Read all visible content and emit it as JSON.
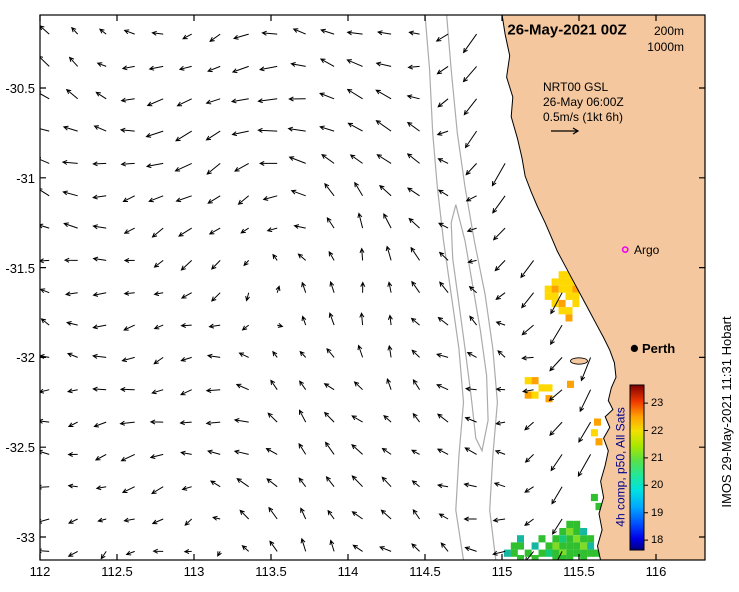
{
  "title": "26-May-2021 00Z",
  "depth_legend": {
    "labels": [
      "200m",
      "1000m"
    ]
  },
  "annotation": {
    "lines": [
      "NRT00 GSL",
      "26-May 06:00Z",
      "0.5m/s (1kt 6h)"
    ]
  },
  "markers": {
    "argo": {
      "label": "Argo",
      "lon": 115.8,
      "lat": -31.4,
      "color": "#f000f0"
    },
    "perth": {
      "label": "Perth",
      "lon": 115.86,
      "lat": -31.95,
      "color": "#000000"
    }
  },
  "axes": {
    "x_tick_labels": [
      "112",
      "112.5",
      "113",
      "113.5",
      "114",
      "114.5",
      "115",
      "115.5",
      "116"
    ],
    "x_tick_values": [
      112,
      112.5,
      113,
      113.5,
      114,
      114.5,
      115,
      115.5,
      116
    ],
    "y_tick_labels": [
      "-30.5",
      "-31",
      "-31.5",
      "-32",
      "-32.5",
      "-33"
    ],
    "y_tick_values": [
      -30.5,
      -31,
      -31.5,
      -32,
      -32.5,
      -33
    ]
  },
  "colorbar": {
    "label": "4h comp, p50, All Sats",
    "label_color": "#00008b",
    "tick_labels": [
      "18",
      "19",
      "20",
      "21",
      "22",
      "23"
    ],
    "tick_values": [
      18,
      19,
      20,
      21,
      22,
      23
    ],
    "value_min": 17.64,
    "value_max": 23.66,
    "stops": [
      [
        0,
        "#00007f"
      ],
      [
        0.07,
        "#0000e8"
      ],
      [
        0.16,
        "#0050ff"
      ],
      [
        0.26,
        "#00a8ff"
      ],
      [
        0.36,
        "#00e0e0"
      ],
      [
        0.45,
        "#20e89a"
      ],
      [
        0.54,
        "#58e04a"
      ],
      [
        0.63,
        "#a8e800"
      ],
      [
        0.72,
        "#f0e000"
      ],
      [
        0.81,
        "#ffa000"
      ],
      [
        0.9,
        "#f03800"
      ],
      [
        1,
        "#7f0000"
      ]
    ]
  },
  "credit": "IMOS 29-May-2021 11:31 Hobart",
  "chart_data": {
    "type": "map",
    "projection": {
      "lon_min": 112,
      "lon_max": 116.32,
      "lat_min": -33.13,
      "lat_max": -30.09
    },
    "colors": {
      "land": "#F5C79E",
      "coastline": "#000000",
      "contour": "#ababab",
      "arrow": "#000000",
      "background": "#ffffff"
    },
    "coastline": [
      [
        115.0,
        -30.09
      ],
      [
        115.02,
        -30.2
      ],
      [
        115.05,
        -30.32
      ],
      [
        115.03,
        -30.44
      ],
      [
        115.07,
        -30.55
      ],
      [
        115.06,
        -30.66
      ],
      [
        115.1,
        -30.78
      ],
      [
        115.13,
        -30.89
      ],
      [
        115.15,
        -30.99
      ],
      [
        115.19,
        -31.08
      ],
      [
        115.23,
        -31.16
      ],
      [
        115.28,
        -31.25
      ],
      [
        115.32,
        -31.33
      ],
      [
        115.36,
        -31.41
      ],
      [
        115.41,
        -31.49
      ],
      [
        115.46,
        -31.57
      ],
      [
        115.51,
        -31.65
      ],
      [
        115.56,
        -31.73
      ],
      [
        115.61,
        -31.81
      ],
      [
        115.66,
        -31.89
      ],
      [
        115.7,
        -31.96
      ],
      [
        115.73,
        -32.03
      ],
      [
        115.74,
        -32.11
      ],
      [
        115.71,
        -32.17
      ],
      [
        115.69,
        -32.24
      ],
      [
        115.72,
        -32.29
      ],
      [
        115.67,
        -32.33
      ],
      [
        115.7,
        -32.39
      ],
      [
        115.66,
        -32.45
      ],
      [
        115.69,
        -32.52
      ],
      [
        115.67,
        -32.6
      ],
      [
        115.64,
        -32.69
      ],
      [
        115.66,
        -32.78
      ],
      [
        115.63,
        -32.87
      ],
      [
        115.65,
        -32.96
      ],
      [
        115.62,
        -33.05
      ],
      [
        115.64,
        -33.13
      ]
    ],
    "island": {
      "lon": 115.5,
      "lat": -32.02,
      "rx": 0.055,
      "ry": 0.018
    },
    "contours": [
      {
        "name": "1000m",
        "closed": false,
        "points": [
          [
            114.5,
            -30.09
          ],
          [
            114.53,
            -30.4
          ],
          [
            114.55,
            -30.75
          ],
          [
            114.58,
            -31.05
          ],
          [
            114.62,
            -31.35
          ],
          [
            114.67,
            -31.65
          ],
          [
            114.72,
            -31.95
          ],
          [
            114.75,
            -32.25
          ],
          [
            114.72,
            -32.55
          ],
          [
            114.7,
            -32.85
          ],
          [
            114.75,
            -33.13
          ]
        ]
      },
      {
        "name": "200m",
        "closed": false,
        "points": [
          [
            114.64,
            -30.09
          ],
          [
            114.67,
            -30.4
          ],
          [
            114.71,
            -30.75
          ],
          [
            114.76,
            -31.05
          ],
          [
            114.82,
            -31.35
          ],
          [
            114.89,
            -31.65
          ],
          [
            114.94,
            -31.95
          ],
          [
            114.97,
            -32.25
          ],
          [
            114.94,
            -32.55
          ],
          [
            114.92,
            -32.85
          ],
          [
            114.96,
            -33.13
          ]
        ]
      },
      {
        "name": "canyon-loop",
        "closed": true,
        "points": [
          [
            114.7,
            -31.15
          ],
          [
            114.76,
            -31.35
          ],
          [
            114.81,
            -31.6
          ],
          [
            114.86,
            -31.85
          ],
          [
            114.9,
            -32.1
          ],
          [
            114.91,
            -32.35
          ],
          [
            114.87,
            -32.52
          ],
          [
            114.83,
            -32.45
          ],
          [
            114.8,
            -32.22
          ],
          [
            114.76,
            -31.95
          ],
          [
            114.72,
            -31.7
          ],
          [
            114.68,
            -31.45
          ],
          [
            114.67,
            -31.25
          ]
        ]
      }
    ],
    "sst_palette": {
      "y": "#ffd800",
      "o": "#ffa200",
      "d": "#ff7a00",
      "g": "#2fbf2f",
      "l": "#7fdc26",
      "t": "#14b8a0",
      "c": "#17c877"
    },
    "sst_cells": [
      [
        115.39,
        -31.54,
        "y"
      ],
      [
        115.435,
        -31.54,
        "y"
      ],
      [
        115.345,
        -31.58,
        "y"
      ],
      [
        115.39,
        -31.58,
        "y"
      ],
      [
        115.435,
        -31.58,
        "y"
      ],
      [
        115.48,
        -31.58,
        "y"
      ],
      [
        115.525,
        -31.58,
        "o"
      ],
      [
        115.3,
        -31.62,
        "y"
      ],
      [
        115.345,
        -31.62,
        "o"
      ],
      [
        115.39,
        -31.62,
        "y"
      ],
      [
        115.435,
        -31.62,
        "y"
      ],
      [
        115.48,
        -31.62,
        "o"
      ],
      [
        115.525,
        -31.62,
        "y"
      ],
      [
        115.3,
        -31.66,
        "y"
      ],
      [
        115.345,
        -31.66,
        "y"
      ],
      [
        115.435,
        -31.66,
        "y"
      ],
      [
        115.48,
        -31.66,
        "y"
      ],
      [
        115.345,
        -31.7,
        "y"
      ],
      [
        115.39,
        -31.7,
        "o"
      ],
      [
        115.48,
        -31.7,
        "y"
      ],
      [
        115.39,
        -31.74,
        "y"
      ],
      [
        115.435,
        -31.74,
        "y"
      ],
      [
        115.435,
        -31.78,
        "o"
      ],
      [
        115.17,
        -32.13,
        "y"
      ],
      [
        115.215,
        -32.13,
        "o"
      ],
      [
        115.26,
        -32.17,
        "y"
      ],
      [
        115.305,
        -32.17,
        "y"
      ],
      [
        115.17,
        -32.21,
        "o"
      ],
      [
        115.215,
        -32.21,
        "y"
      ],
      [
        115.305,
        -32.23,
        "o"
      ],
      [
        115.445,
        -32.15,
        "o"
      ],
      [
        115.62,
        -32.36,
        "o"
      ],
      [
        115.6,
        -32.42,
        "y"
      ],
      [
        115.63,
        -32.47,
        "o"
      ],
      [
        115.6,
        -32.78,
        "g"
      ],
      [
        115.63,
        -32.83,
        "g"
      ],
      [
        115.44,
        -32.93,
        "g"
      ],
      [
        115.485,
        -32.93,
        "g"
      ],
      [
        115.395,
        -32.97,
        "g"
      ],
      [
        115.44,
        -32.97,
        "l"
      ],
      [
        115.485,
        -32.97,
        "g"
      ],
      [
        115.53,
        -32.97,
        "t"
      ],
      [
        115.12,
        -33.01,
        "t"
      ],
      [
        115.26,
        -33.01,
        "g"
      ],
      [
        115.35,
        -33.01,
        "g"
      ],
      [
        115.395,
        -33.01,
        "c"
      ],
      [
        115.44,
        -33.01,
        "g"
      ],
      [
        115.485,
        -33.01,
        "l"
      ],
      [
        115.53,
        -33.01,
        "g"
      ],
      [
        115.575,
        -33.01,
        "g"
      ],
      [
        115.08,
        -33.05,
        "g"
      ],
      [
        115.12,
        -33.05,
        "g"
      ],
      [
        115.215,
        -33.05,
        "t"
      ],
      [
        115.305,
        -33.05,
        "g"
      ],
      [
        115.35,
        -33.05,
        "l"
      ],
      [
        115.395,
        -33.05,
        "g"
      ],
      [
        115.44,
        -33.05,
        "g"
      ],
      [
        115.485,
        -33.05,
        "g"
      ],
      [
        115.53,
        -33.05,
        "l"
      ],
      [
        115.575,
        -33.05,
        "t"
      ],
      [
        115.035,
        -33.09,
        "t"
      ],
      [
        115.08,
        -33.09,
        "g"
      ],
      [
        115.17,
        -33.09,
        "g"
      ],
      [
        115.26,
        -33.09,
        "g"
      ],
      [
        115.305,
        -33.09,
        "c"
      ],
      [
        115.35,
        -33.09,
        "g"
      ],
      [
        115.395,
        -33.09,
        "l"
      ],
      [
        115.44,
        -33.09,
        "g"
      ],
      [
        115.485,
        -33.09,
        "g"
      ],
      [
        115.53,
        -33.09,
        "g"
      ],
      [
        115.575,
        -33.09,
        "g"
      ],
      [
        115.615,
        -33.09,
        "g"
      ],
      [
        115.12,
        -33.12,
        "g"
      ],
      [
        115.215,
        -33.12,
        "g"
      ],
      [
        115.35,
        -33.12,
        "g"
      ],
      [
        115.395,
        -33.12,
        "g"
      ],
      [
        115.44,
        -33.12,
        "g"
      ],
      [
        115.53,
        -33.12,
        "g"
      ]
    ],
    "flow": {
      "grid": {
        "lon_start": 112.06,
        "lon_step": 0.185,
        "lat_start": -30.2,
        "lat_step": 0.18,
        "lat_end": -33.09,
        "coast_gap": 0.09
      },
      "background": {
        "u": -0.14,
        "v": 0.05
      },
      "eddies": [
        {
          "lon": 113.65,
          "lat": -31.2,
          "omega": 0.5,
          "r": 0.8
        },
        {
          "lon": 112.6,
          "lat": -30.4,
          "omega": -0.3,
          "r": 0.7
        },
        {
          "lon": 113.2,
          "lat": -32.8,
          "omega": 0.35,
          "r": 0.8
        }
      ],
      "coastal_jet": {
        "width": 0.4,
        "u": -0.08,
        "v": -0.55
      },
      "noise": 0.05,
      "reference": {
        "speed_ms": 0.5,
        "label": "0.5m/s (1kt 6h)"
      }
    }
  }
}
